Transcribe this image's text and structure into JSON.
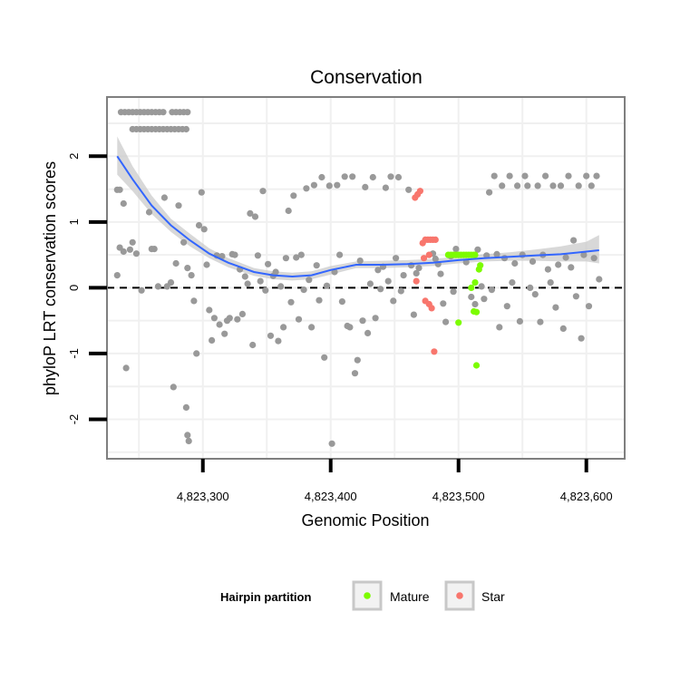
{
  "chart_data": {
    "type": "scatter",
    "title": "Conservation",
    "xlabel": "Genomic Position",
    "ylabel": "phyloP LRT conservation scores",
    "xlim": [
      4823225,
      4823630
    ],
    "ylim": [
      -2.6,
      2.9
    ],
    "x_ticks": [
      4823300,
      4823400,
      4823500,
      4823600
    ],
    "x_tick_labels": [
      "4,823,300",
      "4,823,400",
      "4,823,500",
      "4,823,600"
    ],
    "y_ticks": [
      -2,
      -1,
      0,
      1,
      2
    ],
    "y_tick_labels": [
      "-2",
      "-1",
      "0",
      "1",
      "2"
    ],
    "reference_line": {
      "y": 0,
      "style": "dashed"
    },
    "grid": true,
    "legend": {
      "title": "Hairpin partition",
      "position": "bottom",
      "entries": [
        {
          "label": "Mature",
          "color": "#7cfc00"
        },
        {
          "label": "Star",
          "color": "#f8766d"
        }
      ]
    },
    "colors": {
      "other": "#999999",
      "smooth": "#3366ff",
      "ribbon": "#c8c8c8"
    },
    "smooth": {
      "x": [
        4823233,
        4823245,
        4823260,
        4823275,
        4823290,
        4823305,
        4823320,
        4823340,
        4823355,
        4823370,
        4823385,
        4823400,
        4823420,
        4823440,
        4823460,
        4823480,
        4823500,
        4823520,
        4823540,
        4823560,
        4823580,
        4823600,
        4823610
      ],
      "y": [
        2.0,
        1.65,
        1.25,
        0.95,
        0.72,
        0.52,
        0.38,
        0.24,
        0.19,
        0.17,
        0.19,
        0.27,
        0.35,
        0.35,
        0.36,
        0.38,
        0.42,
        0.45,
        0.47,
        0.49,
        0.51,
        0.55,
        0.57
      ],
      "lower": [
        1.72,
        1.47,
        1.12,
        0.85,
        0.63,
        0.45,
        0.31,
        0.18,
        0.13,
        0.11,
        0.13,
        0.2,
        0.3,
        0.3,
        0.31,
        0.33,
        0.37,
        0.4,
        0.41,
        0.41,
        0.4,
        0.4,
        0.37
      ],
      "upper": [
        2.3,
        1.85,
        1.4,
        1.05,
        0.82,
        0.6,
        0.45,
        0.3,
        0.25,
        0.23,
        0.25,
        0.33,
        0.4,
        0.41,
        0.42,
        0.44,
        0.47,
        0.51,
        0.54,
        0.58,
        0.63,
        0.7,
        0.8
      ]
    },
    "series": [
      {
        "name": "Other",
        "color": "#999999",
        "points": [
          [
            4823236,
            2.67
          ],
          [
            4823239,
            2.67
          ],
          [
            4823242,
            2.67
          ],
          [
            4823245,
            2.67
          ],
          [
            4823248,
            2.67
          ],
          [
            4823251,
            2.67
          ],
          [
            4823254,
            2.67
          ],
          [
            4823257,
            2.67
          ],
          [
            4823260,
            2.67
          ],
          [
            4823263,
            2.67
          ],
          [
            4823266,
            2.67
          ],
          [
            4823269,
            2.67
          ],
          [
            4823276,
            2.67
          ],
          [
            4823279,
            2.67
          ],
          [
            4823282,
            2.67
          ],
          [
            4823285,
            2.67
          ],
          [
            4823288,
            2.67
          ],
          [
            4823245,
            2.41
          ],
          [
            4823248,
            2.41
          ],
          [
            4823251,
            2.41
          ],
          [
            4823254,
            2.41
          ],
          [
            4823257,
            2.41
          ],
          [
            4823260,
            2.41
          ],
          [
            4823263,
            2.41
          ],
          [
            4823266,
            2.41
          ],
          [
            4823269,
            2.41
          ],
          [
            4823272,
            2.41
          ],
          [
            4823275,
            2.41
          ],
          [
            4823278,
            2.41
          ],
          [
            4823281,
            2.41
          ],
          [
            4823284,
            2.41
          ],
          [
            4823287,
            2.41
          ],
          [
            4823233,
            1.49
          ],
          [
            4823235,
            1.49
          ],
          [
            4823238,
            1.28
          ],
          [
            4823233,
            0.19
          ],
          [
            4823235,
            0.61
          ],
          [
            4823238,
            0.55
          ],
          [
            4823240,
            -1.22
          ],
          [
            4823243,
            0.58
          ],
          [
            4823245,
            0.69
          ],
          [
            4823248,
            0.52
          ],
          [
            4823252,
            -0.04
          ],
          [
            4823258,
            1.15
          ],
          [
            4823260,
            0.59
          ],
          [
            4823262,
            0.59
          ],
          [
            4823265,
            0.02
          ],
          [
            4823270,
            1.37
          ],
          [
            4823272,
            0.02
          ],
          [
            4823275,
            0.08
          ],
          [
            4823277,
            -1.51
          ],
          [
            4823279,
            0.37
          ],
          [
            4823281,
            1.25
          ],
          [
            4823285,
            0.69
          ],
          [
            4823287,
            -1.82
          ],
          [
            4823288,
            -2.24
          ],
          [
            4823289,
            -2.33
          ],
          [
            4823288,
            0.3
          ],
          [
            4823291,
            0.19
          ],
          [
            4823293,
            -0.2
          ],
          [
            4823295,
            -1.0
          ],
          [
            4823297,
            0.95
          ],
          [
            4823299,
            1.45
          ],
          [
            4823301,
            0.89
          ],
          [
            4823303,
            0.35
          ],
          [
            4823305,
            -0.34
          ],
          [
            4823307,
            -0.8
          ],
          [
            4823309,
            -0.46
          ],
          [
            4823311,
            0.49
          ],
          [
            4823313,
            -0.56
          ],
          [
            4823315,
            0.48
          ],
          [
            4823317,
            -0.7
          ],
          [
            4823319,
            -0.5
          ],
          [
            4823321,
            -0.46
          ],
          [
            4823323,
            0.51
          ],
          [
            4823325,
            0.5
          ],
          [
            4823327,
            -0.48
          ],
          [
            4823329,
            0.28
          ],
          [
            4823331,
            -0.4
          ],
          [
            4823333,
            0.17
          ],
          [
            4823335,
            0.06
          ],
          [
            4823337,
            1.13
          ],
          [
            4823339,
            -0.87
          ],
          [
            4823341,
            1.08
          ],
          [
            4823343,
            0.49
          ],
          [
            4823345,
            0.1
          ],
          [
            4823347,
            1.47
          ],
          [
            4823349,
            -0.04
          ],
          [
            4823351,
            0.36
          ],
          [
            4823353,
            -0.73
          ],
          [
            4823355,
            0.18
          ],
          [
            4823357,
            0.24
          ],
          [
            4823359,
            -0.81
          ],
          [
            4823361,
            0.02
          ],
          [
            4823363,
            -0.6
          ],
          [
            4823365,
            0.45
          ],
          [
            4823367,
            1.17
          ],
          [
            4823369,
            -0.22
          ],
          [
            4823371,
            1.4
          ],
          [
            4823373,
            0.46
          ],
          [
            4823375,
            -0.48
          ],
          [
            4823377,
            0.5
          ],
          [
            4823379,
            -0.03
          ],
          [
            4823381,
            1.51
          ],
          [
            4823383,
            0.12
          ],
          [
            4823385,
            -0.6
          ],
          [
            4823387,
            1.56
          ],
          [
            4823389,
            0.34
          ],
          [
            4823391,
            -0.19
          ],
          [
            4823393,
            1.68
          ],
          [
            4823395,
            -1.06
          ],
          [
            4823397,
            0.03
          ],
          [
            4823399,
            1.55
          ],
          [
            4823401,
            -2.37
          ],
          [
            4823403,
            0.24
          ],
          [
            4823405,
            1.56
          ],
          [
            4823407,
            0.5
          ],
          [
            4823409,
            -0.21
          ],
          [
            4823411,
            1.69
          ],
          [
            4823413,
            -0.58
          ],
          [
            4823415,
            -0.6
          ],
          [
            4823417,
            1.69
          ],
          [
            4823419,
            -1.3
          ],
          [
            4823421,
            -1.1
          ],
          [
            4823423,
            0.41
          ],
          [
            4823425,
            -0.5
          ],
          [
            4823427,
            1.53
          ],
          [
            4823429,
            -0.69
          ],
          [
            4823431,
            0.06
          ],
          [
            4823433,
            1.68
          ],
          [
            4823435,
            -0.46
          ],
          [
            4823437,
            0.27
          ],
          [
            4823439,
            -0.02
          ],
          [
            4823441,
            0.32
          ],
          [
            4823443,
            1.52
          ],
          [
            4823445,
            0.1
          ],
          [
            4823447,
            1.69
          ],
          [
            4823449,
            -0.2
          ],
          [
            4823451,
            0.45
          ],
          [
            4823453,
            1.68
          ],
          [
            4823455,
            -0.05
          ],
          [
            4823457,
            0.19
          ],
          [
            4823461,
            1.49
          ],
          [
            4823463,
            0.34
          ],
          [
            4823465,
            -0.41
          ],
          [
            4823467,
            0.22
          ],
          [
            4823469,
            0.3
          ],
          [
            4823480,
            0.52
          ],
          [
            4823482,
            0.44
          ],
          [
            4823484,
            0.36
          ],
          [
            4823486,
            0.21
          ],
          [
            4823488,
            -0.24
          ],
          [
            4823490,
            -0.52
          ],
          [
            4823494,
            0.48
          ],
          [
            4823496,
            -0.06
          ],
          [
            4823498,
            0.59
          ],
          [
            4823506,
            0.39
          ],
          [
            4823510,
            -0.14
          ],
          [
            4823513,
            -0.25
          ],
          [
            4823515,
            0.58
          ],
          [
            4823518,
            0.02
          ],
          [
            4823520,
            -0.17
          ],
          [
            4823522,
            0.49
          ],
          [
            4823524,
            1.45
          ],
          [
            4823526,
            -0.03
          ],
          [
            4823528,
            1.7
          ],
          [
            4823530,
            0.51
          ],
          [
            4823532,
            -0.6
          ],
          [
            4823534,
            1.55
          ],
          [
            4823536,
            0.45
          ],
          [
            4823538,
            -0.28
          ],
          [
            4823540,
            1.7
          ],
          [
            4823542,
            0.08
          ],
          [
            4823544,
            0.37
          ],
          [
            4823546,
            1.55
          ],
          [
            4823548,
            -0.51
          ],
          [
            4823550,
            0.5
          ],
          [
            4823552,
            1.7
          ],
          [
            4823554,
            1.55
          ],
          [
            4823556,
            0.0
          ],
          [
            4823558,
            0.4
          ],
          [
            4823560,
            -0.1
          ],
          [
            4823562,
            1.55
          ],
          [
            4823564,
            -0.52
          ],
          [
            4823566,
            0.5
          ],
          [
            4823568,
            1.7
          ],
          [
            4823570,
            0.28
          ],
          [
            4823572,
            0.08
          ],
          [
            4823574,
            1.55
          ],
          [
            4823576,
            -0.3
          ],
          [
            4823578,
            0.35
          ],
          [
            4823580,
            1.55
          ],
          [
            4823582,
            -0.62
          ],
          [
            4823584,
            0.46
          ],
          [
            4823586,
            1.7
          ],
          [
            4823588,
            0.31
          ],
          [
            4823590,
            0.72
          ],
          [
            4823592,
            -0.13
          ],
          [
            4823594,
            1.55
          ],
          [
            4823596,
            -0.77
          ],
          [
            4823598,
            0.5
          ],
          [
            4823600,
            1.7
          ],
          [
            4823602,
            -0.28
          ],
          [
            4823604,
            1.55
          ],
          [
            4823606,
            0.45
          ],
          [
            4823608,
            1.7
          ],
          [
            4823610,
            0.13
          ]
        ]
      },
      {
        "name": "Mature",
        "color": "#7cfc00",
        "points": [
          [
            4823492,
            0.5
          ],
          [
            4823494,
            0.5
          ],
          [
            4823496,
            0.5
          ],
          [
            4823498,
            0.5
          ],
          [
            4823500,
            0.5
          ],
          [
            4823502,
            0.5
          ],
          [
            4823504,
            0.5
          ],
          [
            4823506,
            0.5
          ],
          [
            4823508,
            0.5
          ],
          [
            4823510,
            0.5
          ],
          [
            4823512,
            0.5
          ],
          [
            4823513,
            0.5
          ],
          [
            4823500,
            -0.53
          ],
          [
            4823510,
            0.0
          ],
          [
            4823512,
            -0.36
          ],
          [
            4823513,
            0.08
          ],
          [
            4823514,
            -1.18
          ],
          [
            4823514,
            -0.37
          ],
          [
            4823516,
            0.28
          ],
          [
            4823517,
            0.34
          ]
        ]
      },
      {
        "name": "Star",
        "color": "#f8766d",
        "points": [
          [
            4823466,
            1.37
          ],
          [
            4823468,
            1.42
          ],
          [
            4823470,
            1.47
          ],
          [
            4823467,
            0.1
          ],
          [
            4823472,
            0.68
          ],
          [
            4823474,
            0.73
          ],
          [
            4823476,
            0.73
          ],
          [
            4823478,
            0.73
          ],
          [
            4823480,
            0.73
          ],
          [
            4823482,
            0.73
          ],
          [
            4823474,
            -0.2
          ],
          [
            4823477,
            -0.25
          ],
          [
            4823479,
            -0.31
          ],
          [
            4823481,
            -0.97
          ],
          [
            4823473,
            0.45
          ],
          [
            4823477,
            0.5
          ]
        ]
      }
    ]
  }
}
